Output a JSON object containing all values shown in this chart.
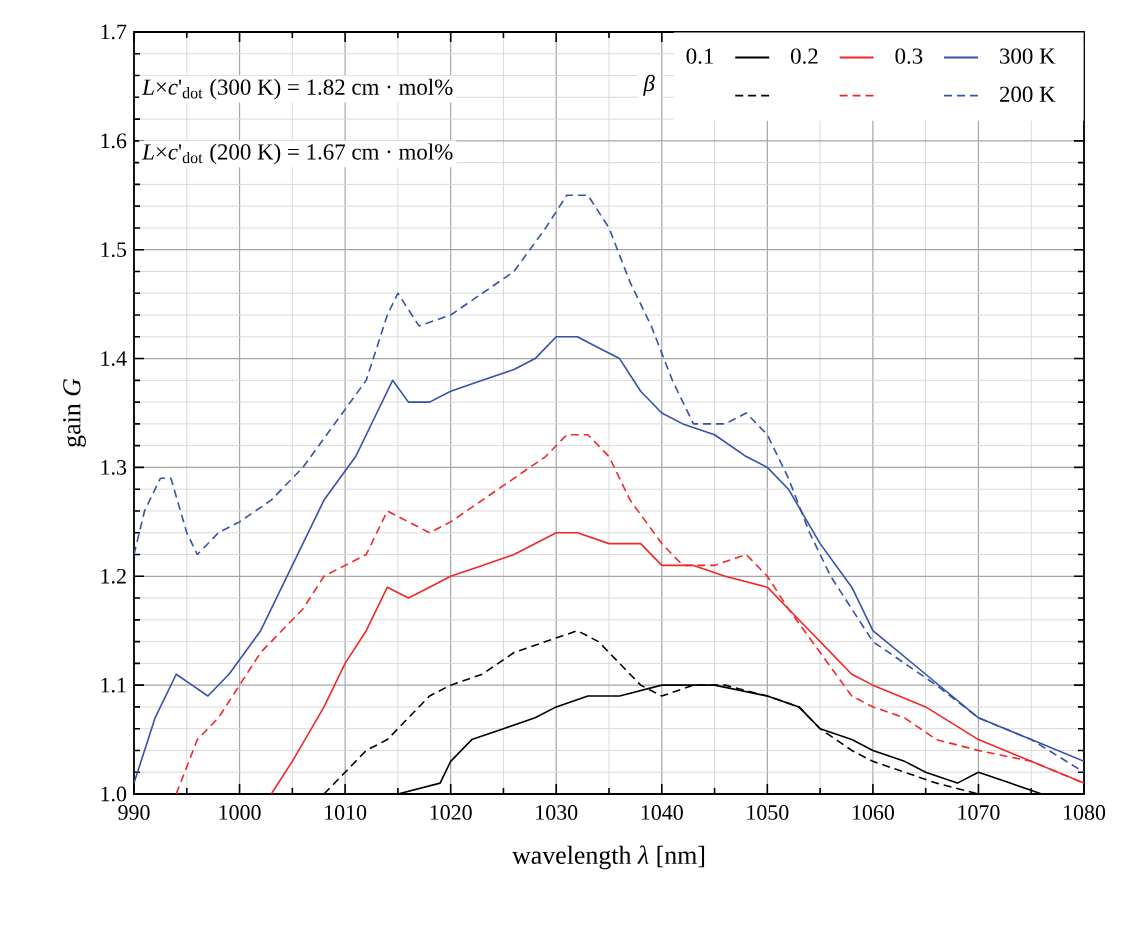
{
  "chart_data": {
    "type": "line",
    "xlabel": "wavelength *λ* [nm]",
    "ylabel": "gain *G*",
    "legend_title": "β",
    "xlim": [
      990,
      1080
    ],
    "ylim": [
      1.0,
      1.7
    ],
    "xticks": [
      990,
      1000,
      1010,
      1020,
      1030,
      1040,
      1050,
      1060,
      1070,
      1080
    ],
    "yticks": [
      {
        "value": 1.0,
        "label": "1.0"
      },
      1.1,
      1.2,
      1.3,
      1.4,
      1.5,
      1.6,
      1.7
    ],
    "grid": true,
    "legend": "top right",
    "marker": "none",
    "annotations": [
      "*L*×*c*'$_{dot}$ (300 K) = 1.82 cm · mol%",
      "*L*×*c*'$_{dot}$ (200 K) = 1.67 cm · mol%",
      "300 K",
      "200 K"
    ],
    "series": [
      {
        "name": "0.1",
        "color": "#000000",
        "line_style": "solid",
        "x": [
          1012,
          1015,
          1019,
          1020,
          1022,
          1025,
          1028,
          1030,
          1033,
          1036,
          1040,
          1045,
          1050,
          1053,
          1055,
          1058,
          1060,
          1063,
          1065,
          1068,
          1070,
          1073,
          1076,
          1080
        ],
        "values": [
          1.0,
          1.0,
          1.01,
          1.03,
          1.05,
          1.06,
          1.07,
          1.08,
          1.09,
          1.09,
          1.1,
          1.1,
          1.09,
          1.08,
          1.06,
          1.05,
          1.04,
          1.03,
          1.02,
          1.01,
          1.02,
          1.01,
          1.0,
          1.0
        ]
      },
      {
        "name": "0.2",
        "color": "#f02828",
        "line_style": "solid",
        "x": [
          1003,
          1005,
          1008,
          1010,
          1012,
          1014,
          1016,
          1018,
          1020,
          1023,
          1026,
          1028,
          1030,
          1032,
          1035,
          1038,
          1040,
          1043,
          1046,
          1050,
          1052,
          1054,
          1055,
          1058,
          1060,
          1065,
          1070,
          1075,
          1080
        ],
        "values": [
          1.0,
          1.03,
          1.08,
          1.12,
          1.15,
          1.19,
          1.18,
          1.19,
          1.2,
          1.21,
          1.22,
          1.23,
          1.24,
          1.24,
          1.23,
          1.23,
          1.21,
          1.21,
          1.2,
          1.19,
          1.17,
          1.15,
          1.14,
          1.11,
          1.1,
          1.08,
          1.05,
          1.03,
          1.01
        ]
      },
      {
        "name": "0.3",
        "color": "#3552a8",
        "line_style": "solid",
        "x": [
          990,
          992,
          994,
          995.5,
          997,
          999,
          1002,
          1005,
          1008,
          1011,
          1013,
          1014.5,
          1016,
          1018,
          1020,
          1023,
          1026,
          1028,
          1030,
          1032,
          1034,
          1036,
          1038,
          1040,
          1042,
          1045,
          1048,
          1050,
          1052,
          1055,
          1058,
          1060,
          1065,
          1070,
          1075,
          1080
        ],
        "values": [
          1.01,
          1.07,
          1.11,
          1.1,
          1.09,
          1.11,
          1.15,
          1.21,
          1.27,
          1.31,
          1.35,
          1.38,
          1.36,
          1.36,
          1.37,
          1.38,
          1.39,
          1.4,
          1.42,
          1.42,
          1.41,
          1.4,
          1.37,
          1.35,
          1.34,
          1.33,
          1.31,
          1.3,
          1.28,
          1.23,
          1.19,
          1.15,
          1.11,
          1.07,
          1.05,
          1.03
        ]
      },
      {
        "color": "#000000",
        "line_style": "dashed",
        "x": [
          1008,
          1010,
          1012,
          1014,
          1016,
          1018,
          1020,
          1023,
          1026,
          1029,
          1032,
          1034,
          1036,
          1038,
          1040,
          1043,
          1046,
          1050,
          1053,
          1055,
          1058,
          1060,
          1063,
          1066,
          1070
        ],
        "values": [
          1.0,
          1.02,
          1.04,
          1.05,
          1.07,
          1.09,
          1.1,
          1.11,
          1.13,
          1.14,
          1.15,
          1.14,
          1.12,
          1.1,
          1.09,
          1.1,
          1.1,
          1.09,
          1.08,
          1.06,
          1.04,
          1.03,
          1.02,
          1.01,
          1.0
        ]
      },
      {
        "color": "#f02828",
        "line_style": "dashed",
        "x": [
          994,
          996,
          998,
          1000,
          1002,
          1004,
          1006,
          1008,
          1010,
          1012,
          1014,
          1016,
          1018,
          1020,
          1023,
          1026,
          1029,
          1031,
          1033,
          1035,
          1037,
          1040,
          1042,
          1045,
          1048,
          1050,
          1052,
          1055,
          1058,
          1060,
          1063,
          1066,
          1070,
          1075,
          1080
        ],
        "values": [
          1.0,
          1.05,
          1.07,
          1.1,
          1.13,
          1.15,
          1.17,
          1.2,
          1.21,
          1.22,
          1.26,
          1.25,
          1.24,
          1.25,
          1.27,
          1.29,
          1.31,
          1.33,
          1.33,
          1.31,
          1.27,
          1.23,
          1.21,
          1.21,
          1.22,
          1.2,
          1.17,
          1.13,
          1.09,
          1.08,
          1.07,
          1.05,
          1.04,
          1.03,
          1.01
        ]
      },
      {
        "color": "#3552a8",
        "line_style": "dashed",
        "x": [
          990,
          991,
          992.5,
          993.5,
          995,
          996,
          998,
          1000,
          1003,
          1006,
          1009,
          1012,
          1014,
          1015,
          1017,
          1020,
          1023,
          1026,
          1029,
          1031,
          1033,
          1035,
          1037,
          1039,
          1041,
          1043,
          1046,
          1048,
          1050,
          1052,
          1054,
          1056,
          1058,
          1060,
          1063,
          1066,
          1070,
          1075,
          1080
        ],
        "values": [
          1.22,
          1.26,
          1.29,
          1.29,
          1.24,
          1.22,
          1.24,
          1.25,
          1.27,
          1.3,
          1.34,
          1.38,
          1.44,
          1.46,
          1.43,
          1.44,
          1.46,
          1.48,
          1.52,
          1.55,
          1.55,
          1.52,
          1.47,
          1.43,
          1.38,
          1.34,
          1.34,
          1.35,
          1.33,
          1.29,
          1.24,
          1.2,
          1.17,
          1.14,
          1.12,
          1.1,
          1.07,
          1.05,
          1.02
        ]
      }
    ]
  }
}
